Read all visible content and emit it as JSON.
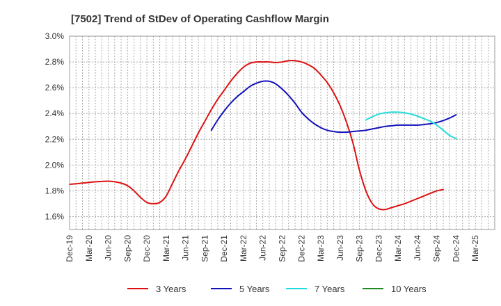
{
  "chart_data": {
    "type": "line",
    "title": "[7502]  Trend of StDev of Operating Cashflow Margin",
    "xlabel": "",
    "ylabel": "",
    "ylim": [
      1.5,
      3.0
    ],
    "yticks": [
      "1.6%",
      "1.8%",
      "2.0%",
      "2.2%",
      "2.4%",
      "2.6%",
      "2.8%",
      "3.0%"
    ],
    "ytick_values": [
      1.6,
      1.8,
      2.0,
      2.2,
      2.4,
      2.6,
      2.8,
      3.0
    ],
    "xticks": [
      "Dec-19",
      "Mar-20",
      "Jun-20",
      "Sep-20",
      "Dec-20",
      "Mar-21",
      "Jun-21",
      "Sep-21",
      "Dec-21",
      "Mar-22",
      "Jun-22",
      "Sep-22",
      "Dec-22",
      "Mar-23",
      "Jun-23",
      "Sep-23",
      "Dec-23",
      "Mar-24",
      "Jun-24",
      "Sep-24",
      "Dec-24",
      "Mar-25"
    ],
    "grid": true,
    "legend_position": "bottom",
    "series": [
      {
        "name": "3 Years",
        "color": "#dd1111",
        "points": [
          [
            "Dec-19",
            1.85
          ],
          [
            "Jan-20",
            1.855
          ],
          [
            "Feb-20",
            1.86
          ],
          [
            "Mar-20",
            1.865
          ],
          [
            "Apr-20",
            1.87
          ],
          [
            "May-20",
            1.873
          ],
          [
            "Jun-20",
            1.875
          ],
          [
            "Jul-20",
            1.87
          ],
          [
            "Aug-20",
            1.86
          ],
          [
            "Sep-20",
            1.84
          ],
          [
            "Oct-20",
            1.8
          ],
          [
            "Nov-20",
            1.75
          ],
          [
            "Dec-20",
            1.71
          ],
          [
            "Jan-21",
            1.7
          ],
          [
            "Feb-21",
            1.71
          ],
          [
            "Mar-21",
            1.76
          ],
          [
            "Apr-21",
            1.86
          ],
          [
            "May-21",
            1.96
          ],
          [
            "Jun-21",
            2.05
          ],
          [
            "Jul-21",
            2.15
          ],
          [
            "Aug-21",
            2.25
          ],
          [
            "Sep-21",
            2.34
          ],
          [
            "Oct-21",
            2.43
          ],
          [
            "Nov-21",
            2.51
          ],
          [
            "Dec-21",
            2.58
          ],
          [
            "Jan-22",
            2.65
          ],
          [
            "Feb-22",
            2.71
          ],
          [
            "Mar-22",
            2.76
          ],
          [
            "Apr-22",
            2.79
          ],
          [
            "May-22",
            2.8
          ],
          [
            "Jun-22",
            2.8
          ],
          [
            "Jul-22",
            2.8
          ],
          [
            "Aug-22",
            2.795
          ],
          [
            "Sep-22",
            2.8
          ],
          [
            "Oct-22",
            2.81
          ],
          [
            "Nov-22",
            2.81
          ],
          [
            "Dec-22",
            2.8
          ],
          [
            "Jan-23",
            2.78
          ],
          [
            "Feb-23",
            2.75
          ],
          [
            "Mar-23",
            2.7
          ],
          [
            "Apr-23",
            2.64
          ],
          [
            "May-23",
            2.56
          ],
          [
            "Jun-23",
            2.46
          ],
          [
            "Jul-23",
            2.33
          ],
          [
            "Aug-23",
            2.17
          ],
          [
            "Sep-23",
            1.96
          ],
          [
            "Oct-23",
            1.8
          ],
          [
            "Nov-23",
            1.7
          ],
          [
            "Dec-23",
            1.66
          ],
          [
            "Jan-24",
            1.655
          ],
          [
            "Feb-24",
            1.67
          ],
          [
            "Mar-24",
            1.685
          ],
          [
            "Apr-24",
            1.7
          ],
          [
            "May-24",
            1.72
          ],
          [
            "Jun-24",
            1.74
          ],
          [
            "Jul-24",
            1.76
          ],
          [
            "Aug-24",
            1.78
          ],
          [
            "Sep-24",
            1.8
          ],
          [
            "Oct-24",
            1.81
          ]
        ]
      },
      {
        "name": "5 Years",
        "color": "#1111bb",
        "points": [
          [
            "Oct-21",
            2.27
          ],
          [
            "Nov-21",
            2.35
          ],
          [
            "Dec-21",
            2.42
          ],
          [
            "Jan-22",
            2.48
          ],
          [
            "Feb-22",
            2.53
          ],
          [
            "Mar-22",
            2.57
          ],
          [
            "Apr-22",
            2.61
          ],
          [
            "May-22",
            2.635
          ],
          [
            "Jun-22",
            2.65
          ],
          [
            "Jul-22",
            2.65
          ],
          [
            "Aug-22",
            2.63
          ],
          [
            "Sep-22",
            2.59
          ],
          [
            "Oct-22",
            2.54
          ],
          [
            "Nov-22",
            2.48
          ],
          [
            "Dec-22",
            2.41
          ],
          [
            "Jan-23",
            2.36
          ],
          [
            "Feb-23",
            2.32
          ],
          [
            "Mar-23",
            2.29
          ],
          [
            "Apr-23",
            2.27
          ],
          [
            "May-23",
            2.26
          ],
          [
            "Jun-23",
            2.255
          ],
          [
            "Jul-23",
            2.255
          ],
          [
            "Aug-23",
            2.26
          ],
          [
            "Sep-23",
            2.265
          ],
          [
            "Oct-23",
            2.27
          ],
          [
            "Nov-23",
            2.28
          ],
          [
            "Dec-23",
            2.29
          ],
          [
            "Jan-24",
            2.3
          ],
          [
            "Feb-24",
            2.305
          ],
          [
            "Mar-24",
            2.31
          ],
          [
            "Apr-24",
            2.31
          ],
          [
            "May-24",
            2.31
          ],
          [
            "Jun-24",
            2.31
          ],
          [
            "Jul-24",
            2.315
          ],
          [
            "Aug-24",
            2.32
          ],
          [
            "Sep-24",
            2.33
          ],
          [
            "Oct-24",
            2.345
          ],
          [
            "Nov-24",
            2.365
          ],
          [
            "Dec-24",
            2.39
          ]
        ]
      },
      {
        "name": "7 Years",
        "color": "#22dddd",
        "points": [
          [
            "Oct-23",
            2.35
          ],
          [
            "Nov-23",
            2.375
          ],
          [
            "Dec-23",
            2.395
          ],
          [
            "Jan-24",
            2.405
          ],
          [
            "Feb-24",
            2.41
          ],
          [
            "Mar-24",
            2.41
          ],
          [
            "Apr-24",
            2.405
          ],
          [
            "May-24",
            2.395
          ],
          [
            "Jun-24",
            2.38
          ],
          [
            "Jul-24",
            2.36
          ],
          [
            "Aug-24",
            2.34
          ],
          [
            "Sep-24",
            2.31
          ],
          [
            "Oct-24",
            2.27
          ],
          [
            "Nov-24",
            2.23
          ],
          [
            "Dec-24",
            2.205
          ]
        ]
      },
      {
        "name": "10 Years",
        "color": "#228822",
        "points": []
      }
    ]
  }
}
